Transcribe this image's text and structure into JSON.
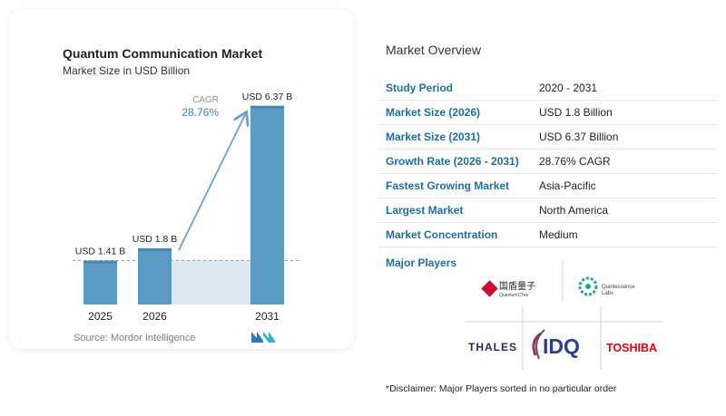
{
  "chart_data": {
    "type": "bar",
    "title": "Quantum Communication Market",
    "subtitle": "Market Size in USD Billion",
    "categories": [
      "2025",
      "2026",
      "2031"
    ],
    "values": [
      1.41,
      1.8,
      6.37
    ],
    "data_labels": [
      "USD 1.41 B",
      "USD 1.8 B",
      "USD 6.37 B"
    ],
    "ylim": [
      0,
      6.8
    ],
    "cagr_label": "CAGR",
    "cagr_value": "28.76%",
    "colors": {
      "bar": "#5b9ac3",
      "bar_top": "#4a86b2",
      "shade": "#dce8f2",
      "arrow": "#6aa3c9",
      "dashed": "#9aa3ad"
    }
  },
  "source": "Source: Mordor Intelligence",
  "overview": {
    "title": "Market Overview",
    "rows": [
      {
        "label": "Study Period",
        "value": "2020 - 2031"
      },
      {
        "label": "Market Size (2026)",
        "value": "USD 1.8 Billion"
      },
      {
        "label": "Market Size (2031)",
        "value": "USD 6.37 Billion"
      },
      {
        "label": "Growth Rate (2026 - 2031)",
        "value": "28.76% CAGR"
      },
      {
        "label": "Fastest Growing Market",
        "value": "Asia-Pacific"
      },
      {
        "label": "Largest Market",
        "value": "North America"
      },
      {
        "label": "Market Concentration",
        "value": "Medium"
      }
    ]
  },
  "players": {
    "title": "Major Players",
    "logos": {
      "quantumctek": {
        "cn": "国盾量子",
        "en": "QuantumCTek"
      },
      "quintessence": {
        "line1": "Quintessence",
        "line2": "Labs"
      },
      "thales": "THALES",
      "idq": "IDQ",
      "toshiba": "TOSHIBA"
    }
  },
  "disclaimer": "*Disclaimer: Major Players sorted in no particular order"
}
